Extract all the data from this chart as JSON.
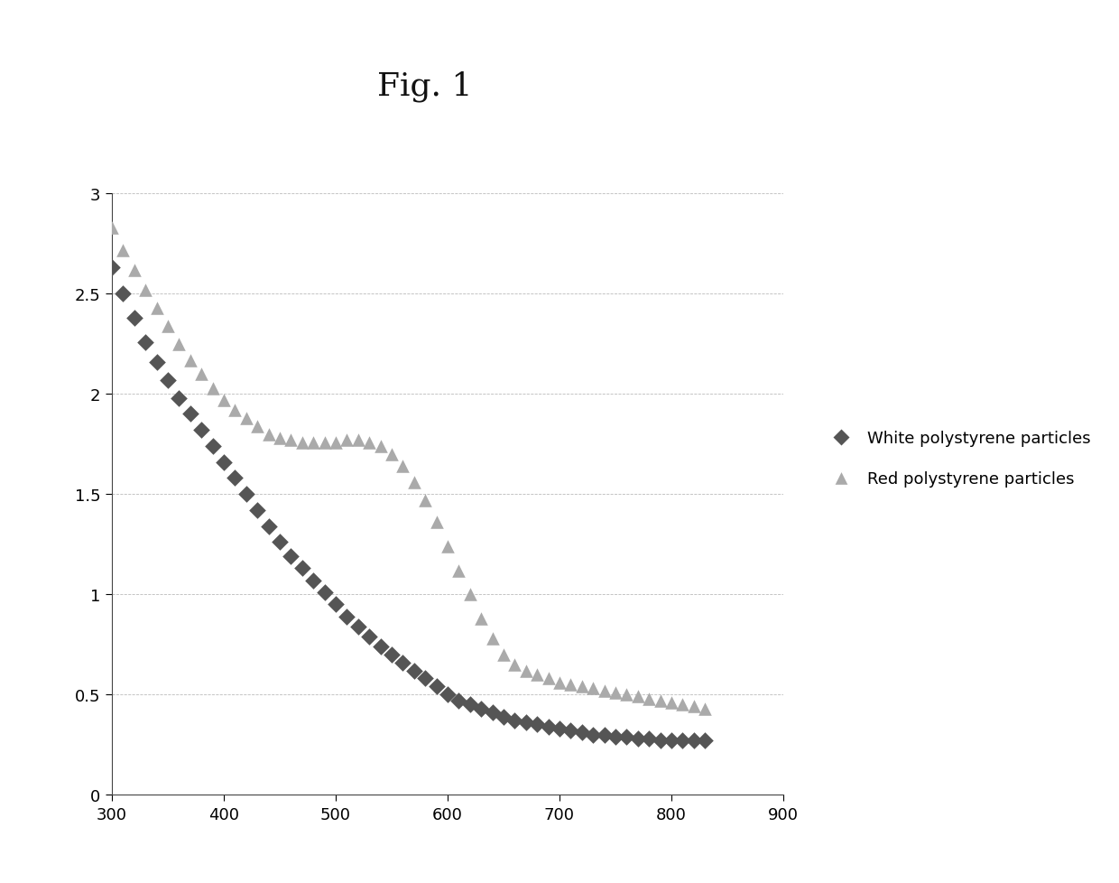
{
  "title": "Fig. 1",
  "title_fontsize": 26,
  "xlim": [
    300,
    900
  ],
  "ylim": [
    0,
    3.0
  ],
  "xticks": [
    300,
    400,
    500,
    600,
    700,
    800,
    900
  ],
  "yticks": [
    0,
    0.5,
    1.0,
    1.5,
    2.0,
    2.5,
    3.0
  ],
  "background_color": "#ffffff",
  "grid_color": "#bbbbbb",
  "white_color": "#555555",
  "red_color": "#aaaaaa",
  "white_label": "White polystyrene particles",
  "red_label": "Red polystyrene particles",
  "white_x": [
    300,
    310,
    320,
    330,
    340,
    350,
    360,
    370,
    380,
    390,
    400,
    410,
    420,
    430,
    440,
    450,
    460,
    470,
    480,
    490,
    500,
    510,
    520,
    530,
    540,
    550,
    560,
    570,
    580,
    590,
    600,
    610,
    620,
    630,
    640,
    650,
    660,
    670,
    680,
    690,
    700,
    710,
    720,
    730,
    740,
    750,
    760,
    770,
    780,
    790,
    800,
    810,
    820,
    830
  ],
  "white_y": [
    2.63,
    2.5,
    2.38,
    2.26,
    2.16,
    2.07,
    1.98,
    1.9,
    1.82,
    1.74,
    1.66,
    1.58,
    1.5,
    1.42,
    1.34,
    1.26,
    1.19,
    1.13,
    1.07,
    1.01,
    0.95,
    0.89,
    0.84,
    0.79,
    0.74,
    0.7,
    0.66,
    0.62,
    0.58,
    0.54,
    0.5,
    0.47,
    0.45,
    0.43,
    0.41,
    0.39,
    0.37,
    0.36,
    0.35,
    0.34,
    0.33,
    0.32,
    0.31,
    0.3,
    0.3,
    0.29,
    0.29,
    0.28,
    0.28,
    0.27,
    0.27,
    0.27,
    0.27,
    0.27
  ],
  "red_x": [
    300,
    310,
    320,
    330,
    340,
    350,
    360,
    370,
    380,
    390,
    400,
    410,
    420,
    430,
    440,
    450,
    460,
    470,
    480,
    490,
    500,
    510,
    520,
    530,
    540,
    550,
    560,
    570,
    580,
    590,
    600,
    610,
    620,
    630,
    640,
    650,
    660,
    670,
    680,
    690,
    700,
    710,
    720,
    730,
    740,
    750,
    760,
    770,
    780,
    790,
    800,
    810,
    820,
    830
  ],
  "red_y": [
    2.83,
    2.72,
    2.62,
    2.52,
    2.43,
    2.34,
    2.25,
    2.17,
    2.1,
    2.03,
    1.97,
    1.92,
    1.88,
    1.84,
    1.8,
    1.78,
    1.77,
    1.76,
    1.76,
    1.76,
    1.76,
    1.77,
    1.77,
    1.76,
    1.74,
    1.7,
    1.64,
    1.56,
    1.47,
    1.36,
    1.24,
    1.12,
    1.0,
    0.88,
    0.78,
    0.7,
    0.65,
    0.62,
    0.6,
    0.58,
    0.56,
    0.55,
    0.54,
    0.53,
    0.52,
    0.51,
    0.5,
    0.49,
    0.48,
    0.47,
    0.46,
    0.45,
    0.44,
    0.43
  ]
}
